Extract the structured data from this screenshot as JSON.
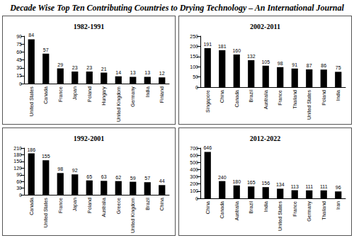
{
  "title": "Decade Wise Top Ten Contributing Countries to Drying Technology – An International Journal",
  "chart_data": [
    {
      "type": "bar",
      "title": "1982-1991",
      "categories": [
        "United States",
        "Canada",
        "France",
        "Japan",
        "Poland",
        "Hungary",
        "United Kingdom",
        "Germany",
        "India",
        "Finland"
      ],
      "values": [
        84,
        57,
        29,
        23,
        23,
        21,
        14,
        13,
        13,
        12
      ],
      "color": "#000000",
      "ylim": [
        0,
        90
      ],
      "yticks": [
        0,
        15,
        30,
        45,
        60,
        75,
        90
      ],
      "grid": false,
      "data_labels": true
    },
    {
      "type": "bar",
      "title": "2002-2011",
      "categories": [
        "Singapore",
        "China",
        "Canada",
        "Brazil",
        "Australia",
        "France",
        "Thailand",
        "United States",
        "Poland",
        "India"
      ],
      "values": [
        191,
        181,
        160,
        132,
        105,
        98,
        91,
        87,
        86,
        75
      ],
      "color": "#000000",
      "ylim": [
        0,
        250
      ],
      "yticks": [
        0,
        50,
        100,
        150,
        200,
        250
      ],
      "grid": false,
      "data_labels": true
    },
    {
      "type": "bar",
      "title": "1992-2001",
      "categories": [
        "Canada",
        "United States",
        "France",
        "Japan",
        "Poland",
        "Australia",
        "Greece",
        "United Kingdom",
        "Brazil",
        "China"
      ],
      "values": [
        186,
        155,
        98,
        92,
        65,
        63,
        62,
        59,
        57,
        44
      ],
      "color": "#000000",
      "ylim": [
        0,
        210
      ],
      "yticks": [
        0,
        30,
        60,
        90,
        120,
        150,
        180,
        210
      ],
      "grid": false,
      "data_labels": true
    },
    {
      "type": "bar",
      "title": "2012-2022",
      "categories": [
        "China",
        "Canada",
        "Australia",
        "Brazil",
        "India",
        "United States",
        "France",
        "Germany",
        "Thailand",
        "Iran"
      ],
      "values": [
        646,
        240,
        180,
        165,
        156,
        134,
        113,
        111,
        111,
        96
      ],
      "color": "#000000",
      "ylim": [
        0,
        700
      ],
      "yticks": [
        0,
        100,
        200,
        300,
        400,
        500,
        600,
        700
      ],
      "grid": false,
      "data_labels": true
    }
  ]
}
